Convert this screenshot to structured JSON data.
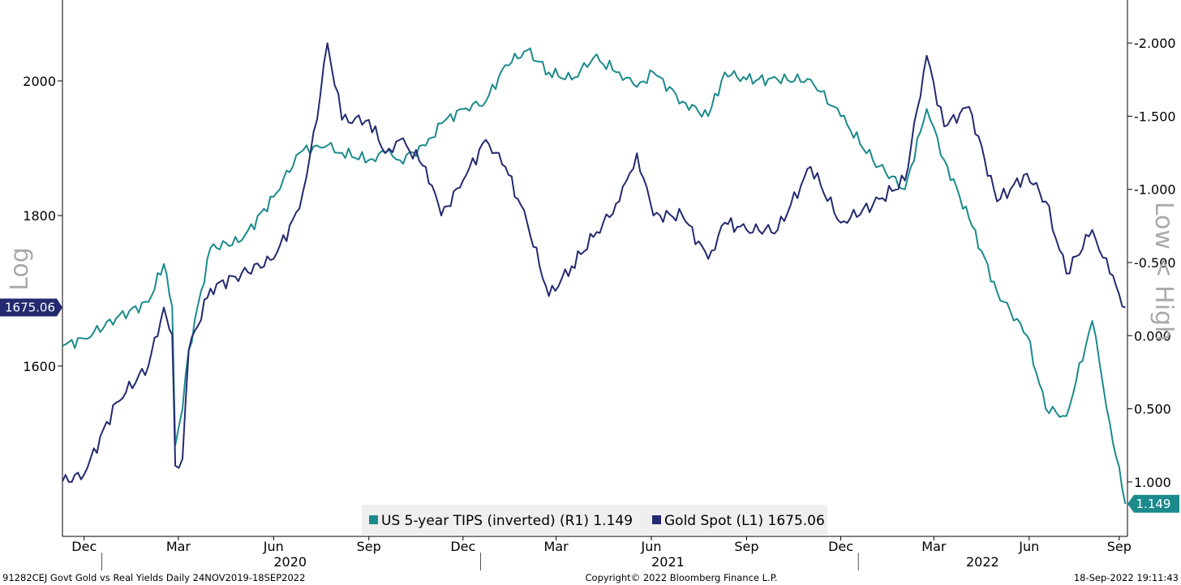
{
  "chart_data": {
    "type": "line",
    "dates": [
      "2019-11-24",
      "2019-12-15",
      "2020-01-15",
      "2020-02-15",
      "2020-03-01",
      "2020-03-09",
      "2020-03-12",
      "2020-03-19",
      "2020-03-25",
      "2020-04-15",
      "2020-05-15",
      "2020-06-15",
      "2020-07-10",
      "2020-07-27",
      "2020-08-06",
      "2020-08-20",
      "2020-09-15",
      "2020-10-01",
      "2020-10-15",
      "2020-11-09",
      "2020-11-24",
      "2020-12-15",
      "2021-01-06",
      "2021-01-25",
      "2021-02-15",
      "2021-03-08",
      "2021-03-30",
      "2021-04-20",
      "2021-05-15",
      "2021-06-01",
      "2021-06-17",
      "2021-07-15",
      "2021-08-09",
      "2021-08-25",
      "2021-09-15",
      "2021-10-15",
      "2021-11-16",
      "2021-12-15",
      "2022-01-15",
      "2022-02-15",
      "2022-03-08",
      "2022-03-25",
      "2022-04-18",
      "2022-05-15",
      "2022-06-13",
      "2022-07-01",
      "2022-07-21",
      "2022-08-15",
      "2022-09-01",
      "2022-09-16"
    ],
    "series": [
      {
        "name": "US 5-year TIPS (inverted) (R1)",
        "axis": "right",
        "color": "#1b8a8c",
        "last_value": "1.149",
        "values": [
          0.07,
          0.02,
          -0.12,
          -0.23,
          -0.49,
          -0.2,
          0.75,
          0.5,
          0.1,
          -0.6,
          -0.65,
          -0.95,
          -1.25,
          -1.3,
          -1.3,
          -1.25,
          -1.2,
          -1.25,
          -1.2,
          -1.3,
          -1.45,
          -1.55,
          -1.6,
          -1.85,
          -1.95,
          -1.8,
          -1.75,
          -1.9,
          -1.8,
          -1.7,
          -1.8,
          -1.6,
          -1.5,
          -1.8,
          -1.75,
          -1.75,
          -1.75,
          -1.5,
          -1.2,
          -1.0,
          -1.55,
          -1.2,
          -0.8,
          -0.3,
          0.0,
          0.5,
          0.55,
          -0.1,
          0.6,
          1.149
        ]
      },
      {
        "name": "Gold Spot (L1)",
        "axis": "left",
        "color": "#232a6f",
        "last_value": "1675.06",
        "values": [
          1462,
          1470,
          1555,
          1600,
          1675,
          1640,
          1480,
          1488,
          1620,
          1700,
          1720,
          1740,
          1810,
          1940,
          2060,
          1940,
          1940,
          1890,
          1910,
          1870,
          1800,
          1850,
          1910,
          1870,
          1790,
          1690,
          1730,
          1770,
          1820,
          1890,
          1800,
          1800,
          1740,
          1790,
          1780,
          1780,
          1870,
          1790,
          1815,
          1850,
          2040,
          1930,
          1960,
          1820,
          1860,
          1820,
          1720,
          1780,
          1720,
          1675.06
        ]
      }
    ],
    "left_axis": {
      "title": "Log",
      "scale": "log",
      "ticks": [
        "1600",
        "1800",
        "2000"
      ],
      "range": [
        1420,
        2120
      ],
      "last_value_tag": "1675.06"
    },
    "right_axis": {
      "title": "Low < High",
      "inverted": true,
      "ticks": [
        "-2.000",
        "-1.500",
        "-1.000",
        "-0.500",
        "0.000",
        "0.500",
        "1.000"
      ],
      "range": [
        -2.25,
        1.25
      ],
      "last_value_tag": "1.149"
    },
    "x_axis": {
      "start": "2019-11-24",
      "end": "2022-09-18",
      "months": [
        {
          "label": "Dec",
          "date": "2019-12-15"
        },
        {
          "label": "Mar",
          "date": "2020-03-15"
        },
        {
          "label": "Jun",
          "date": "2020-06-15"
        },
        {
          "label": "Sep",
          "date": "2020-09-15"
        },
        {
          "label": "Dec",
          "date": "2020-12-15"
        },
        {
          "label": "Mar",
          "date": "2021-03-15"
        },
        {
          "label": "Jun",
          "date": "2021-06-15"
        },
        {
          "label": "Sep",
          "date": "2021-09-15"
        },
        {
          "label": "Dec",
          "date": "2021-12-15"
        },
        {
          "label": "Mar",
          "date": "2022-03-15"
        },
        {
          "label": "Jun",
          "date": "2022-06-15"
        },
        {
          "label": "Sep",
          "date": "2022-09-10"
        }
      ],
      "years": [
        {
          "label": "2020",
          "date": "2020-07-01"
        },
        {
          "label": "2021",
          "date": "2021-07-01"
        },
        {
          "label": "2022",
          "date": "2022-05-01"
        }
      ]
    },
    "legend": [
      {
        "label": "US 5-year TIPS (inverted) (R1) 1.149",
        "color": "#1b8a8c"
      },
      {
        "label": "Gold Spot (L1) 1675.06",
        "color": "#232a6f"
      }
    ],
    "legend_placement": "bottom-center",
    "grid": false
  },
  "footer": {
    "left": "91282CEJ Govt Gold vs Real Yields  Daily 24NOV2019-18SEP2022",
    "center": "Copyright© 2022 Bloomberg Finance L.P.",
    "right": "18-Sep-2022 19:11:43"
  }
}
